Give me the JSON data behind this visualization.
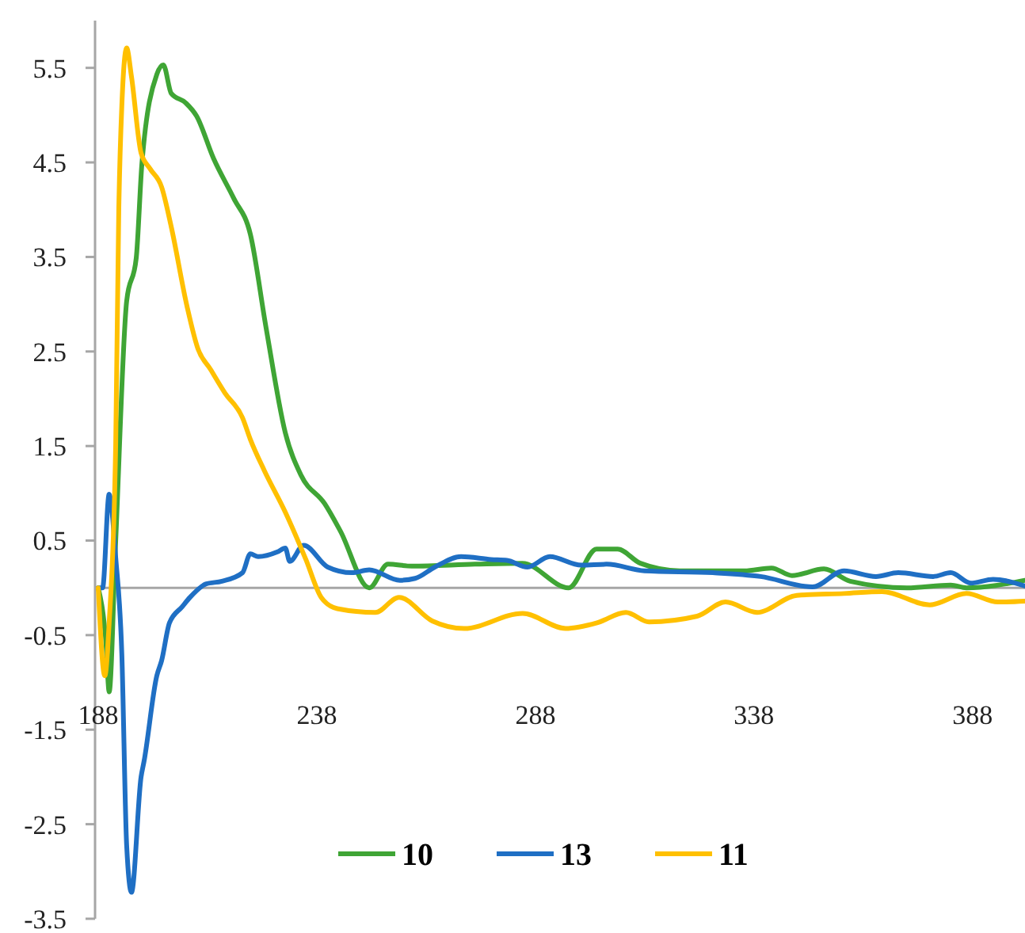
{
  "chart_data": {
    "type": "line",
    "xlim": [
      188,
      400
    ],
    "xticks": [
      188,
      238,
      288,
      338,
      388
    ],
    "ylim": [
      -3.5,
      6
    ],
    "yticks": [
      -3.5,
      -2.5,
      -1.5,
      -0.5,
      0.5,
      1.5,
      2.5,
      3.5,
      4.5,
      5.5
    ],
    "grid": false,
    "legend": "bottom",
    "marker": "none",
    "line_style": "solid",
    "series": [
      {
        "name": "10",
        "color": "#3fa535",
        "x": [
          188,
          189.8,
          190.5,
          192,
          194.5,
          196.7,
          198,
          201.4,
          202.9,
          204.7,
          208,
          210.5,
          214.4,
          219,
          222.8,
          226.4,
          230.8,
          234.4,
          239.8,
          243.4,
          250,
          254.3,
          259.7,
          274.2,
          285,
          295.6,
          302,
          306.8,
          312,
          321,
          335.8,
          342,
          346.7,
          354,
          360,
          373,
          383,
          386.6,
          400
        ],
        "values": [
          0,
          -0.6,
          -1.1,
          0.5,
          3.03,
          3.49,
          4.49,
          5.43,
          5.53,
          5.23,
          5.13,
          4.99,
          4.54,
          4.12,
          3.74,
          2.75,
          1.64,
          1.19,
          0.89,
          0.6,
          0,
          0.25,
          0.23,
          0.25,
          0.26,
          0,
          0.41,
          0.41,
          0.26,
          0.18,
          0.18,
          0.21,
          0.13,
          0.2,
          0.07,
          0,
          0.03,
          0,
          0.08
        ]
      },
      {
        "name": "13",
        "color": "#1f6fc4",
        "x": [
          188,
          189,
          190.5,
          192,
          193.4,
          194.5,
          195.6,
          197.8,
          198.5,
          201.4,
          202.5,
          204.3,
          207.2,
          209,
          212.6,
          216.3,
          221,
          222.8,
          224.6,
          229,
          230.8,
          231.8,
          235,
          240.5,
          246,
          250,
          257,
          260.5,
          265,
          271,
          277.9,
          281.5,
          286.2,
          291.3,
          298.5,
          304.3,
          313,
          328.6,
          339.5,
          351.4,
          358.6,
          365.9,
          371,
          379,
          383,
          387.6,
          392.7,
          400
        ],
        "values": [
          0,
          0,
          0.99,
          0.32,
          -0.7,
          -2.72,
          -3.22,
          -2.0,
          -1.83,
          -0.93,
          -0.77,
          -0.37,
          -0.2,
          -0.1,
          0.04,
          0.07,
          0.16,
          0.36,
          0.33,
          0.38,
          0.42,
          0.28,
          0.45,
          0.22,
          0.16,
          0.19,
          0.08,
          0.1,
          0.22,
          0.33,
          0.3,
          0.29,
          0.22,
          0.33,
          0.24,
          0.25,
          0.18,
          0.16,
          0.12,
          0.01,
          0.18,
          0.12,
          0.16,
          0.12,
          0.16,
          0.05,
          0.09,
          0.02
        ]
      },
      {
        "name": "11",
        "color": "#ffc000",
        "x": [
          188,
          189.5,
          190.5,
          192,
          192.7,
          193.4,
          194.5,
          195.6,
          197.8,
          199.9,
          202.5,
          204.7,
          208.3,
          210.8,
          213.7,
          217,
          221,
          222.8,
          226,
          230.8,
          235.5,
          239,
          242.7,
          251.4,
          256.8,
          264.4,
          271.7,
          285.1,
          294.9,
          302.1,
          308.7,
          314,
          325,
          331.5,
          338.7,
          347.8,
          358.6,
          367.3,
          378.2,
          386.6,
          393.8,
          400
        ],
        "values": [
          0,
          -0.93,
          -0.37,
          1.52,
          3.99,
          5.1,
          5.71,
          5.41,
          4.6,
          4.43,
          4.24,
          3.82,
          2.98,
          2.53,
          2.31,
          2.06,
          1.8,
          1.57,
          1.24,
          0.8,
          0.3,
          -0.1,
          -0.22,
          -0.26,
          -0.1,
          -0.35,
          -0.43,
          -0.27,
          -0.43,
          -0.37,
          -0.26,
          -0.36,
          -0.3,
          -0.15,
          -0.26,
          -0.08,
          -0.06,
          -0.04,
          -0.18,
          -0.06,
          -0.15,
          -0.14
        ]
      }
    ]
  }
}
